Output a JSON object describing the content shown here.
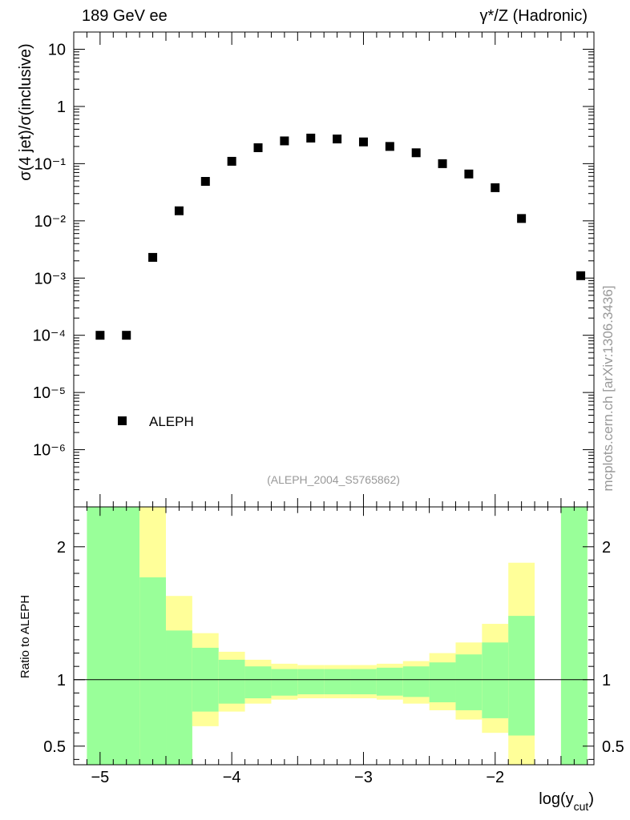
{
  "header": {
    "left_title": "189 GeV ee",
    "right_title": "γ*/Z (Hadronic)"
  },
  "side_note": "mcplots.cern.ch [arXiv:1306.3436]",
  "watermark": "(ALEPH_2004_S5765862)",
  "colors": {
    "band_inner": "#99ff99",
    "band_outer": "#ffff99",
    "marker": "#000000"
  },
  "chart_data": [
    {
      "type": "scatter",
      "log_y": true,
      "ylabel": "σ(4 jet)/σ(inclusive)",
      "xlabel": "",
      "xlim": [
        -5.2,
        -1.25
      ],
      "ylim": [
        1e-07,
        20
      ],
      "y_ticks": [
        "10⁻⁶",
        "10⁻⁵",
        "10⁻⁴",
        "10⁻³",
        "10⁻²",
        "10⁻¹",
        "1",
        "10"
      ],
      "legend": {
        "position": "bottom-left",
        "entries": [
          {
            "name": "ALEPH",
            "marker": "square"
          }
        ]
      },
      "series": [
        {
          "name": "ALEPH",
          "x": [
            -5.0,
            -4.8,
            -4.6,
            -4.4,
            -4.2,
            -4.0,
            -3.8,
            -3.6,
            -3.4,
            -3.2,
            -3.0,
            -2.8,
            -2.6,
            -2.4,
            -2.2,
            -2.0,
            -1.8,
            -1.35
          ],
          "y": [
            0.0001,
            0.0001,
            0.0023,
            0.015,
            0.049,
            0.11,
            0.19,
            0.25,
            0.28,
            0.27,
            0.24,
            0.2,
            0.155,
            0.1,
            0.066,
            0.038,
            0.011,
            0.0011
          ]
        }
      ]
    },
    {
      "type": "area",
      "ylabel": "Ratio to ALEPH",
      "xlabel": "log(y_cut)",
      "xlim": [
        -5.2,
        -1.25
      ],
      "ylim": [
        0.36,
        2.3
      ],
      "x_ticks": [
        "−5",
        "−4",
        "−3",
        "−2"
      ],
      "y_ticks": [
        "0.5",
        "1",
        "2"
      ],
      "reference_line": 1,
      "bins": [
        {
          "x_low": -5.1,
          "x_high": -4.7,
          "inner": [
            0.36,
            2.3
          ],
          "outer": [
            0.36,
            2.3
          ]
        },
        {
          "x_low": -4.7,
          "x_high": -4.5,
          "inner": [
            0.36,
            1.77
          ],
          "outer": [
            0.36,
            2.3
          ]
        },
        {
          "x_low": -4.5,
          "x_high": -4.3,
          "inner": [
            0.36,
            1.37
          ],
          "outer": [
            0.37,
            1.63
          ]
        },
        {
          "x_low": -4.3,
          "x_high": -4.1,
          "inner": [
            0.76,
            1.24
          ],
          "outer": [
            0.65,
            1.35
          ]
        },
        {
          "x_low": -4.1,
          "x_high": -3.9,
          "inner": [
            0.82,
            1.15
          ],
          "outer": [
            0.76,
            1.21
          ]
        },
        {
          "x_low": -3.9,
          "x_high": -3.7,
          "inner": [
            0.86,
            1.1
          ],
          "outer": [
            0.82,
            1.15
          ]
        },
        {
          "x_low": -3.7,
          "x_high": -3.5,
          "inner": [
            0.88,
            1.08
          ],
          "outer": [
            0.85,
            1.12
          ]
        },
        {
          "x_low": -3.5,
          "x_high": -3.3,
          "inner": [
            0.89,
            1.08
          ],
          "outer": [
            0.86,
            1.11
          ]
        },
        {
          "x_low": -3.3,
          "x_high": -3.1,
          "inner": [
            0.89,
            1.08
          ],
          "outer": [
            0.86,
            1.11
          ]
        },
        {
          "x_low": -3.1,
          "x_high": -2.9,
          "inner": [
            0.89,
            1.08
          ],
          "outer": [
            0.86,
            1.11
          ]
        },
        {
          "x_low": -2.9,
          "x_high": -2.7,
          "inner": [
            0.88,
            1.09
          ],
          "outer": [
            0.85,
            1.12
          ]
        },
        {
          "x_low": -2.7,
          "x_high": -2.5,
          "inner": [
            0.87,
            1.1
          ],
          "outer": [
            0.82,
            1.14
          ]
        },
        {
          "x_low": -2.5,
          "x_high": -2.3,
          "inner": [
            0.83,
            1.13
          ],
          "outer": [
            0.77,
            1.2
          ]
        },
        {
          "x_low": -2.3,
          "x_high": -2.1,
          "inner": [
            0.77,
            1.19
          ],
          "outer": [
            0.7,
            1.28
          ]
        },
        {
          "x_low": -2.1,
          "x_high": -1.9,
          "inner": [
            0.71,
            1.28
          ],
          "outer": [
            0.6,
            1.42
          ]
        },
        {
          "x_low": -1.9,
          "x_high": -1.7,
          "inner": [
            0.58,
            1.48
          ],
          "outer": [
            0.36,
            1.88
          ]
        },
        {
          "x_low": -1.5,
          "x_high": -1.3,
          "inner": [
            0.36,
            2.3
          ],
          "outer": [
            0.36,
            2.3
          ]
        }
      ]
    }
  ]
}
